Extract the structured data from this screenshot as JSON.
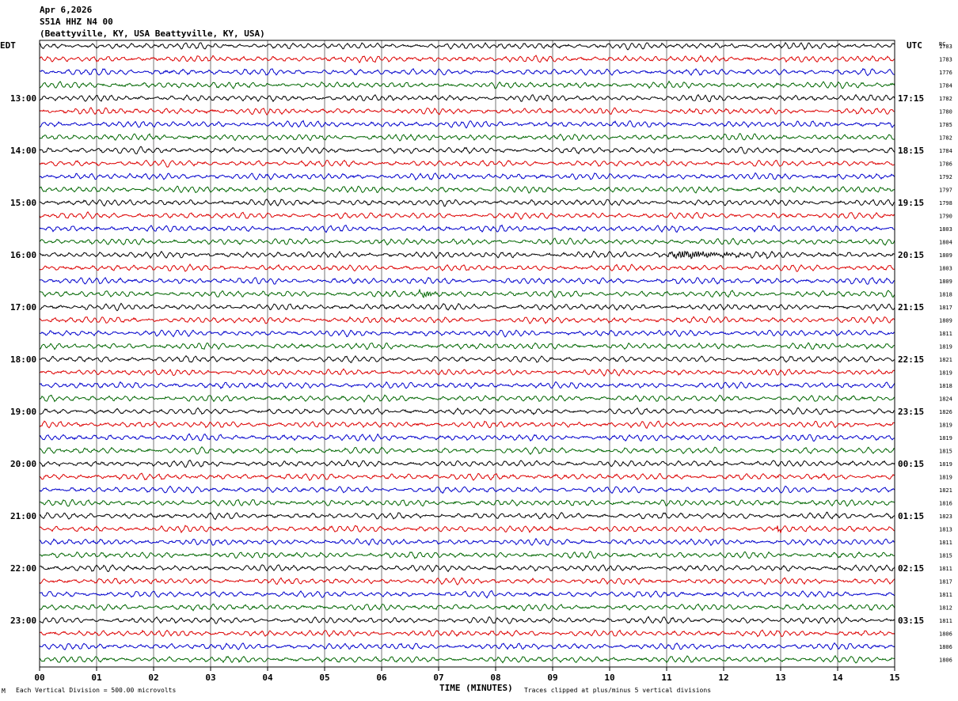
{
  "header": {
    "date": "Apr 6,2026",
    "station": "S51A HHZ N4 00",
    "location": "(Beattyville, KY, USA Beattyville, KY, USA)"
  },
  "left_timezone": "EDT",
  "right_timezone": "UTC",
  "rc_heading": "RC",
  "footer": {
    "left_mark": "M",
    "scale": "Each Vertical Division =  500.00 microvolts",
    "xlabel": "TIME (MINUTES)",
    "clip": "Traces clipped at plus/minus 5 vertical divisions"
  },
  "colors": {
    "trace_cycle": [
      "#000000",
      "#dd0000",
      "#0000cc",
      "#006600"
    ],
    "grid": "#777777"
  },
  "chart_data": {
    "type": "line",
    "title": "",
    "xlabel": "TIME (MINUTES)",
    "xlim": [
      0,
      15
    ],
    "x_ticks": [
      "00",
      "01",
      "02",
      "03",
      "04",
      "05",
      "06",
      "07",
      "08",
      "09",
      "10",
      "11",
      "12",
      "13",
      "14",
      "15"
    ],
    "traces_per_hour": 4,
    "trace_minutes": 15,
    "left_hour_labels": [
      {
        "trace": 4,
        "label": "13:00"
      },
      {
        "trace": 8,
        "label": "14:00"
      },
      {
        "trace": 12,
        "label": "15:00"
      },
      {
        "trace": 16,
        "label": "16:00"
      },
      {
        "trace": 20,
        "label": "17:00"
      },
      {
        "trace": 24,
        "label": "18:00"
      },
      {
        "trace": 28,
        "label": "19:00"
      },
      {
        "trace": 32,
        "label": "20:00"
      },
      {
        "trace": 36,
        "label": "21:00"
      },
      {
        "trace": 40,
        "label": "22:00"
      },
      {
        "trace": 44,
        "label": "23:00"
      }
    ],
    "right_hour_labels": [
      {
        "trace": 4,
        "label": "17:15"
      },
      {
        "trace": 8,
        "label": "18:15"
      },
      {
        "trace": 12,
        "label": "19:15"
      },
      {
        "trace": 16,
        "label": "20:15"
      },
      {
        "trace": 20,
        "label": "21:15"
      },
      {
        "trace": 24,
        "label": "22:15"
      },
      {
        "trace": 28,
        "label": "23:15"
      },
      {
        "trace": 32,
        "label": "00:15"
      },
      {
        "trace": 36,
        "label": "01:15"
      },
      {
        "trace": 40,
        "label": "02:15"
      },
      {
        "trace": 44,
        "label": "03:15"
      }
    ],
    "rc_values": [
      "1783",
      "1783",
      "1776",
      "1784",
      "1782",
      "1780",
      "1785",
      "1782",
      "1784",
      "1786",
      "1792",
      "1797",
      "1798",
      "1790",
      "1803",
      "1804",
      "1809",
      "1803",
      "1809",
      "1818",
      "1817",
      "1809",
      "1811",
      "1819",
      "1821",
      "1819",
      "1818",
      "1824",
      "1826",
      "1819",
      "1819",
      "1815",
      "1819",
      "1819",
      "1821",
      "1816",
      "1823",
      "1813",
      "1811",
      "1815",
      "1811",
      "1817",
      "1811",
      "1812",
      "1811",
      "1806",
      "1806",
      "1806"
    ],
    "events": [
      {
        "trace": 16,
        "minute_start": 10.9,
        "minute_peak": 11.35,
        "minute_end": 13.2,
        "amplitude": 12
      },
      {
        "trace": 19,
        "minute_start": 6.5,
        "minute_peak": 6.8,
        "minute_end": 7.2,
        "amplitude": 9
      }
    ],
    "spikes": [
      {
        "trace": 37,
        "minute": 12.97,
        "amplitude": 10
      },
      {
        "trace": 33,
        "minute": 12.97,
        "amplitude": 6
      }
    ]
  }
}
